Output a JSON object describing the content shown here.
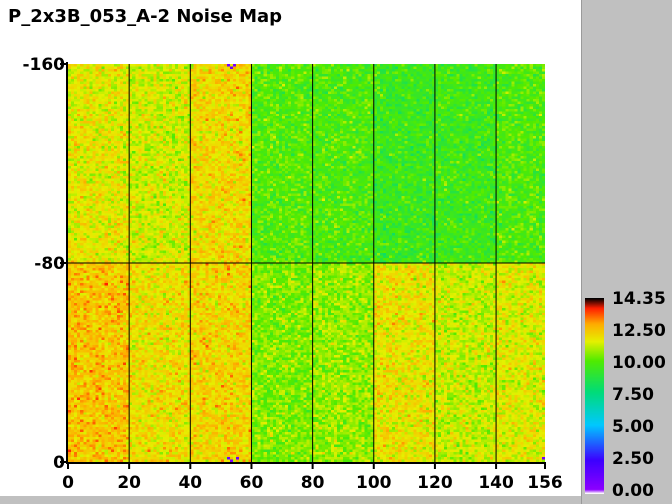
{
  "chart_data": {
    "type": "heatmap",
    "title": "P_2x3B_053_A-2 Noise Map",
    "xlabel": "",
    "ylabel": "",
    "xlim": [
      0,
      156
    ],
    "ylim": [
      0,
      160
    ],
    "x_ticks": [
      0,
      20,
      40,
      60,
      80,
      100,
      120,
      140,
      156
    ],
    "x_tick_labels": [
      "0",
      "20",
      "40",
      "60",
      "80",
      "100",
      "120",
      "140",
      "156"
    ],
    "y_ticks": [
      0,
      80,
      160
    ],
    "y_tick_labels": [
      "0",
      "-80",
      "-160"
    ],
    "grid": true,
    "grid_x": [
      20,
      40,
      60,
      80,
      100,
      120,
      140
    ],
    "grid_y": [
      80
    ],
    "colorscale_range": [
      0.0,
      14.35
    ],
    "colorbar_labels": [
      "14.35",
      "12.50",
      "10.00",
      "7.50",
      "5.00",
      "2.50",
      "0.00"
    ],
    "approx_region_means": {
      "x_bounds": [
        0,
        20,
        40,
        60,
        80,
        100,
        120,
        140,
        156
      ],
      "upper_half_y_80_to_160": [
        11.3,
        11.0,
        11.6,
        9.7,
        9.6,
        9.2,
        9.3,
        9.6
      ],
      "lower_half_y_0_to_80": [
        12.0,
        11.5,
        11.7,
        10.2,
        10.4,
        11.4,
        10.9,
        11.2
      ]
    },
    "dead_pixels": [
      {
        "x": 52,
        "y": 159,
        "value": 0.9
      },
      {
        "x": 53,
        "y": 158,
        "value": 1.2
      },
      {
        "x": 54,
        "y": 159,
        "value": 0.8
      },
      {
        "x": 52,
        "y": 1,
        "value": 1.0
      },
      {
        "x": 53,
        "y": 0,
        "value": 0.7
      },
      {
        "x": 55,
        "y": 1,
        "value": 1.1
      },
      {
        "x": 155,
        "y": 1,
        "value": 0.9
      }
    ]
  }
}
